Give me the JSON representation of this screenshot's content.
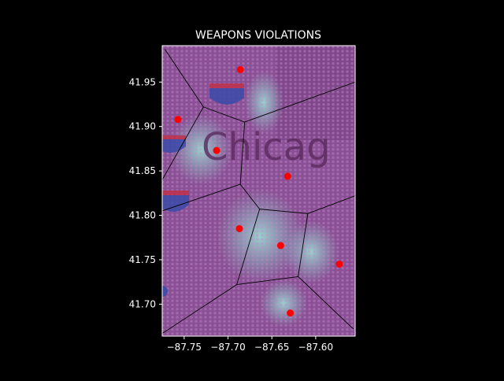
{
  "chart_data": {
    "type": "scatter",
    "title": "WEAPONS VIOLATIONS",
    "xlabel": "",
    "ylabel": "",
    "xlim": [
      -87.775,
      -87.555
    ],
    "ylim": [
      41.664,
      41.991
    ],
    "xticks": [
      -87.75,
      -87.7,
      -87.65,
      -87.6
    ],
    "xtick_labels": [
      "−87.75",
      "−87.70",
      "−87.65",
      "−87.60"
    ],
    "yticks": [
      41.7,
      41.75,
      41.8,
      41.85,
      41.9,
      41.95
    ],
    "ytick_labels": [
      "41.70",
      "41.75",
      "41.80",
      "41.85",
      "41.90",
      "41.95"
    ],
    "grid": false,
    "legend": "none",
    "background_map_text": "Chicag",
    "series": [
      {
        "marker_color": "#ff0000",
        "points": [
          {
            "x": -87.686,
            "y": 41.964
          },
          {
            "x": -87.757,
            "y": 41.908
          },
          {
            "x": -87.713,
            "y": 41.873
          },
          {
            "x": -87.632,
            "y": 41.844
          },
          {
            "x": -87.687,
            "y": 41.785
          },
          {
            "x": -87.64,
            "y": 41.766
          },
          {
            "x": -87.573,
            "y": 41.745
          },
          {
            "x": -87.629,
            "y": 41.69
          }
        ]
      }
    ],
    "voronoi_edges": [
      [
        [
          -87.772,
          41.987
        ],
        [
          -87.728,
          41.922
        ]
      ],
      [
        [
          -87.728,
          41.922
        ],
        [
          -87.681,
          41.905
        ]
      ],
      [
        [
          -87.681,
          41.905
        ],
        [
          -87.555,
          41.95
        ]
      ],
      [
        [
          -87.681,
          41.905
        ],
        [
          -87.686,
          41.835
        ]
      ],
      [
        [
          -87.728,
          41.922
        ],
        [
          -87.775,
          41.84
        ]
      ],
      [
        [
          -87.686,
          41.835
        ],
        [
          -87.775,
          41.805
        ]
      ],
      [
        [
          -87.686,
          41.835
        ],
        [
          -87.664,
          41.807
        ]
      ],
      [
        [
          -87.664,
          41.807
        ],
        [
          -87.609,
          41.802
        ]
      ],
      [
        [
          -87.609,
          41.802
        ],
        [
          -87.555,
          41.822
        ]
      ],
      [
        [
          -87.664,
          41.807
        ],
        [
          -87.69,
          41.722
        ]
      ],
      [
        [
          -87.609,
          41.802
        ],
        [
          -87.62,
          41.731
        ]
      ],
      [
        [
          -87.62,
          41.731
        ],
        [
          -87.69,
          41.722
        ]
      ],
      [
        [
          -87.69,
          41.722
        ],
        [
          -87.775,
          41.667
        ]
      ],
      [
        [
          -87.62,
          41.731
        ],
        [
          -87.557,
          41.672
        ]
      ]
    ],
    "colors": {
      "figure_background": "#000000",
      "map_base": "#8a4f94",
      "points": "#ff0000",
      "edges": "#000000",
      "hotspots": "#7fd3c6"
    }
  }
}
